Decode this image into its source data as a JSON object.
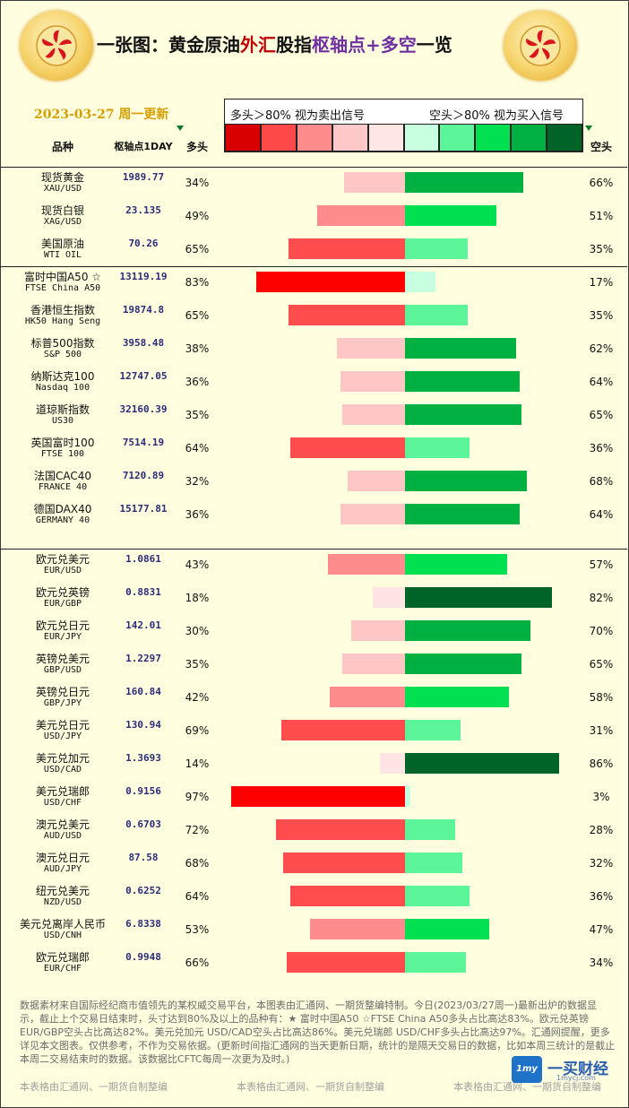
{
  "header": {
    "title_parts": [
      "一张图：黄金原油",
      "外汇",
      "股指",
      "枢轴点",
      "+多空",
      "一览"
    ],
    "date": "2023-03-27 周一更新"
  },
  "legend": {
    "left_text": "多头＞80% 视为卖出信号",
    "right_text": "空头＞80% 视为买入信号",
    "swatch_colors": [
      "#d80000",
      "#ff4848",
      "#ff8c8c",
      "#ffc8c8",
      "#ffe6e6",
      "#c8ffe0",
      "#5cf59a",
      "#00e050",
      "#00b040",
      "#006428"
    ]
  },
  "columns": {
    "name": "品种",
    "pivot": "枢轴点1DAY",
    "long": "多头",
    "short": "空头"
  },
  "chart_data": {
    "type": "bar",
    "rows": [
      {
        "cn": "现货黄金",
        "en": "XAU/USD",
        "pivot": "1989.77",
        "long_label": "34%",
        "short_label": "66%",
        "long": 34,
        "short": 66
      },
      {
        "cn": "现货白银",
        "en": "XAG/USD",
        "pivot": "23.135",
        "long_label": "49%",
        "short_label": "51%",
        "long": 49,
        "short": 51
      },
      {
        "cn": "美国原油",
        "en": "WTI OIL",
        "pivot": "70.26",
        "long_label": "65%",
        "short_label": "35%",
        "long": 65,
        "short": 35
      },
      {
        "cn": "富时中国A50 ☆",
        "en": "FTSE China A50",
        "pivot": "13119.19",
        "long_label": "83%",
        "short_label": "17%",
        "long": 83,
        "short": 17
      },
      {
        "cn": "香港恒生指数",
        "en": "HK50 Hang Seng",
        "pivot": "19874.8",
        "long_label": "65%",
        "short_label": "35%",
        "long": 65,
        "short": 35
      },
      {
        "cn": "标普500指数",
        "en": "S&P 500",
        "pivot": "3958.48",
        "long_label": "38%",
        "short_label": "62%",
        "long": 38,
        "short": 62
      },
      {
        "cn": "纳斯达克100",
        "en": "Nasdaq 100",
        "pivot": "12747.05",
        "long_label": "36%",
        "short_label": "64%",
        "long": 36,
        "short": 64
      },
      {
        "cn": "道琼斯指数",
        "en": "US30",
        "pivot": "32160.39",
        "long_label": "35%",
        "short_label": "65%",
        "long": 35,
        "short": 65
      },
      {
        "cn": "英国富时100",
        "en": "FTSE 100",
        "pivot": "7514.19",
        "long_label": "64%",
        "short_label": "36%",
        "long": 64,
        "short": 36
      },
      {
        "cn": "法国CAC40",
        "en": "FRANCE 40",
        "pivot": "7120.89",
        "long_label": "32%",
        "short_label": "68%",
        "long": 32,
        "short": 68
      },
      {
        "cn": "德国DAX40",
        "en": "GERMANY 40",
        "pivot": "15177.81",
        "long_label": "36%",
        "short_label": "64%",
        "long": 36,
        "short": 64
      },
      {
        "cn": "欧元兑美元",
        "en": "EUR/USD",
        "pivot": "1.0861",
        "long_label": "43%",
        "short_label": "57%",
        "long": 43,
        "short": 57
      },
      {
        "cn": "欧元兑英镑",
        "en": "EUR/GBP",
        "pivot": "0.8831",
        "long_label": "18%",
        "short_label": "82%",
        "long": 18,
        "short": 82
      },
      {
        "cn": "欧元兑日元",
        "en": "EUR/JPY",
        "pivot": "142.01",
        "long_label": "30%",
        "short_label": "70%",
        "long": 30,
        "short": 70
      },
      {
        "cn": "英镑兑美元",
        "en": "GBP/USD",
        "pivot": "1.2297",
        "long_label": "35%",
        "short_label": "65%",
        "long": 35,
        "short": 65
      },
      {
        "cn": "英镑兑日元",
        "en": "GBP/JPY",
        "pivot": "160.84",
        "long_label": "42%",
        "short_label": "58%",
        "long": 42,
        "short": 58
      },
      {
        "cn": "美元兑日元",
        "en": "USD/JPY",
        "pivot": "130.94",
        "long_label": "69%",
        "short_label": "31%",
        "long": 69,
        "short": 31
      },
      {
        "cn": "美元兑加元",
        "en": "USD/CAD",
        "pivot": "1.3693",
        "long_label": "14%",
        "short_label": "86%",
        "long": 14,
        "short": 86
      },
      {
        "cn": "美元兑瑞郎",
        "en": "USD/CHF",
        "pivot": "0.9156",
        "long_label": "97%",
        "short_label": "3%",
        "long": 97,
        "short": 3
      },
      {
        "cn": "澳元兑美元",
        "en": "AUD/USD",
        "pivot": "0.6703",
        "long_label": "72%",
        "short_label": "28%",
        "long": 72,
        "short": 28
      },
      {
        "cn": "澳元兑日元",
        "en": "AUD/JPY",
        "pivot": "87.58",
        "long_label": "68%",
        "short_label": "32%",
        "long": 68,
        "short": 32
      },
      {
        "cn": "纽元兑美元",
        "en": "NZD/USD",
        "pivot": "0.6252",
        "long_label": "64%",
        "short_label": "36%",
        "long": 64,
        "short": 36
      },
      {
        "cn": "美元兑离岸人民币",
        "en": "USD/CNH",
        "pivot": "6.8338",
        "long_label": "53%",
        "short_label": "47%",
        "long": 53,
        "short": 47
      },
      {
        "cn": "欧元兑瑞郎",
        "en": "EUR/CHF",
        "pivot": "0.9948",
        "long_label": "66%",
        "short_label": "34%",
        "long": 66,
        "short": 34
      }
    ]
  },
  "footnote": "数据素材来自国际经纪商市值领先的某权威交易平台，本图表由汇通网、一期货整编特制。今日(2023/03/27周一)最新出炉的数据显示，截止上个交易日结束时，头寸达到80%及以上的品种有：★ 富时中国A50 ☆FTSE China A50多头占比高达83%。欧元兑英镑 EUR/GBP空头占比高达82%。美元兑加元 USD/CAD空头占比高达86%。美元兑瑞郎 USD/CHF多头占比高达97%。汇通网提醒，更多详见本文图表。仅供参考，不作为交易依据。(更新时间指汇通网的当天更新日期，统计的是隔天交易日的数据，比如本周三统计的是截止本周二交易结束时的数据。该数据比CFTC每周一次更为及时。)",
  "footer_marks": [
    "本表格由汇通网、一期货自制整编",
    "本表格由汇通网、一期货自制整编",
    "本表格由汇通网、一期货自制整编"
  ],
  "watermark": {
    "icon": "1my",
    "text": "一买财经",
    "sub": "1mycj.com"
  }
}
